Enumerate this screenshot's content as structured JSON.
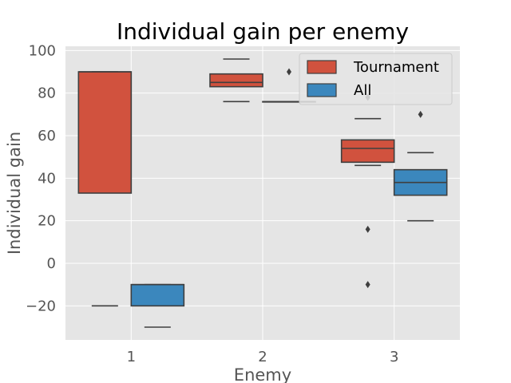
{
  "chart_data": {
    "type": "box",
    "title": "Individual gain per enemy",
    "xlabel": "Enemy",
    "ylabel": "Individual gain",
    "categories": [
      "1",
      "2",
      "3"
    ],
    "ylim": [
      -36,
      102
    ],
    "yticks": [
      -20,
      0,
      20,
      40,
      60,
      80,
      100
    ],
    "ytick_labels": [
      "−20",
      "0",
      "20",
      "40",
      "60",
      "80",
      "100"
    ],
    "grid": true,
    "legend_position": "top-right",
    "series": [
      {
        "name": "Tournament",
        "color": "#d1523e",
        "boxes": [
          {
            "category": "1",
            "whisker_low": -20,
            "q1": 33,
            "median": 90,
            "q3": 90,
            "whisker_high": 90,
            "outliers": []
          },
          {
            "category": "2",
            "whisker_low": 76,
            "q1": 83,
            "median": 85,
            "q3": 89,
            "whisker_high": 96,
            "outliers": []
          },
          {
            "category": "3",
            "whisker_low": 46,
            "q1": 47.5,
            "median": 54,
            "q3": 58,
            "whisker_high": 68,
            "outliers": [
              78,
              16,
              -10
            ]
          }
        ]
      },
      {
        "name": "All",
        "color": "#3b87bd",
        "boxes": [
          {
            "category": "1",
            "whisker_low": -30,
            "q1": -20,
            "median": -10,
            "q3": -10,
            "whisker_high": -10,
            "outliers": []
          },
          {
            "category": "2",
            "whisker_low": 76,
            "q1": 76,
            "median": 76,
            "q3": 76,
            "whisker_high": 76,
            "outliers": [
              90
            ]
          },
          {
            "category": "3",
            "whisker_low": 20,
            "q1": 32,
            "median": 38,
            "q3": 44,
            "whisker_high": 52,
            "outliers": [
              70
            ]
          }
        ]
      }
    ]
  }
}
